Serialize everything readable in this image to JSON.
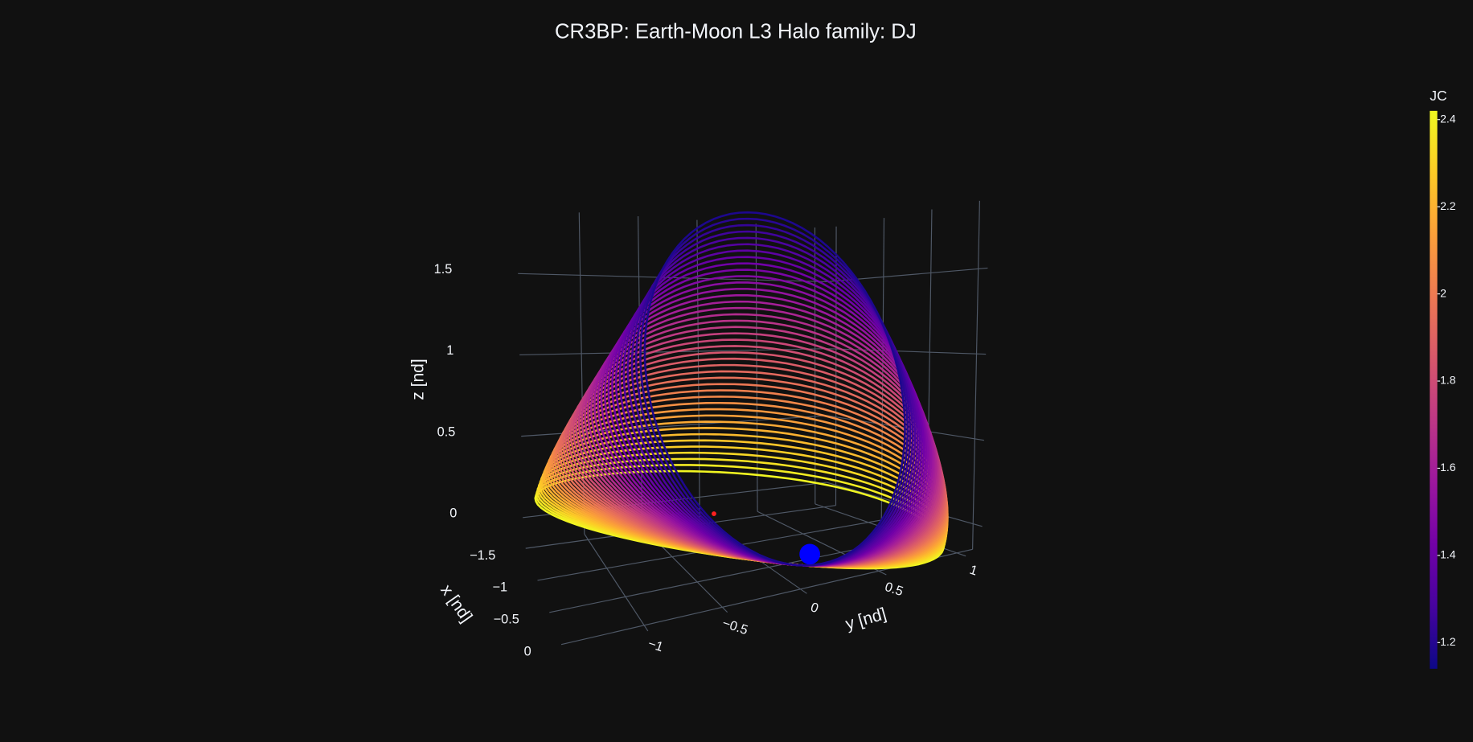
{
  "chart_data": {
    "type": "line3d",
    "title": "CR3BP: Earth-Moon L3 Halo family: DJ",
    "x_label": "x [nd]",
    "y_label": "y [nd]",
    "z_label": "z [nd]",
    "xlim": [
      -1.6,
      0.1
    ],
    "ylim": [
      -1.53,
      1.1
    ],
    "zlim": [
      -0.15,
      1.9
    ],
    "xticks": [
      {
        "value": -1.5,
        "label": "−1.5"
      },
      {
        "value": -1,
        "label": "−1"
      },
      {
        "value": -0.5,
        "label": "−0.5"
      },
      0
    ],
    "yticks": [
      {
        "value": -1,
        "label": "−1"
      },
      {
        "value": -0.5,
        "label": "−0.5"
      },
      0,
      0.5,
      1
    ],
    "zticks": [
      0,
      0.5,
      1,
      1.5
    ],
    "grid": true,
    "colorbar": {
      "title": "JC",
      "lim": [
        1.14,
        2.42
      ],
      "ticks": [
        1.2,
        1.4,
        1.6,
        1.8,
        2,
        2.2,
        2.4
      ]
    },
    "colorscale": [
      "#0d0887",
      "#46039f",
      "#7201a8",
      "#9c179e",
      "#bd3786",
      "#d8576b",
      "#ed7953",
      "#fb9f3a",
      "#fdca26",
      "#f0f921"
    ],
    "values": [
      2.41,
      2.38,
      2.35,
      2.32,
      2.29,
      2.26,
      2.23,
      2.2,
      2.17,
      2.14,
      2.11,
      2.08,
      2.05,
      2.02,
      1.99,
      1.96,
      1.93,
      1.9,
      1.87,
      1.84,
      1.81,
      1.78,
      1.75,
      1.72,
      1.69,
      1.66,
      1.63,
      1.6,
      1.57,
      1.54,
      1.51,
      1.48,
      1.45,
      1.42,
      1.39,
      1.36,
      1.33,
      1.3,
      1.27,
      1.24,
      1.21,
      1.18
    ]
  }
}
